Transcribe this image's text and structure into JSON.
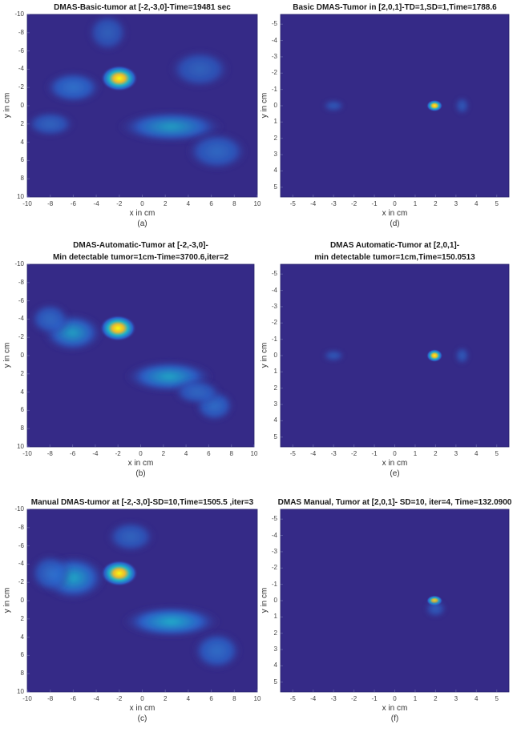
{
  "colors": {
    "background": "#352a87",
    "low": "#2b5fc8",
    "mid": "#1fb0c8",
    "high": "#f9fb0e"
  },
  "chart_data": [
    {
      "id": "a",
      "type": "heatmap",
      "title": [
        "DMAS-Basic-tumor at [-2,-3,0]-Time=19481 sec"
      ],
      "xlabel": "x in cm",
      "ylabel": "y in cm",
      "sublabel": "(a)",
      "xlim": [
        -10,
        10
      ],
      "ylim": [
        -10,
        10
      ],
      "xticks": [
        -10,
        -8,
        -6,
        -4,
        -2,
        0,
        2,
        4,
        6,
        8,
        10
      ],
      "yticks": [
        -10,
        -8,
        -6,
        -4,
        -2,
        0,
        2,
        4,
        6,
        8,
        10
      ],
      "y_reversed": true,
      "hotspots": [
        {
          "x": -2,
          "y": -3,
          "intensity": 1.0,
          "sx": 0.9,
          "sy": 0.8
        },
        {
          "x": -6,
          "y": -2,
          "intensity": 0.35,
          "sx": 1.4,
          "sy": 1.0
        },
        {
          "x": 2.5,
          "y": 2.3,
          "intensity": 0.4,
          "sx": 2.6,
          "sy": 1.0
        },
        {
          "x": 6.5,
          "y": 5,
          "intensity": 0.25,
          "sx": 1.5,
          "sy": 1.2
        },
        {
          "x": -8,
          "y": 2,
          "intensity": 0.2,
          "sx": 1.2,
          "sy": 0.8
        },
        {
          "x": 5,
          "y": -4,
          "intensity": 0.18,
          "sx": 1.5,
          "sy": 1.2
        },
        {
          "x": -3,
          "y": -8,
          "intensity": 0.15,
          "sx": 1,
          "sy": 1.2
        }
      ]
    },
    {
      "id": "d",
      "type": "heatmap",
      "title": [
        "Basic DMAS-Tumor in [2,0,1]-TD=1,SD=1,Time=1788.6"
      ],
      "xlabel": "x in cm",
      "ylabel": "y in cm",
      "sublabel": "(d)",
      "xlim": [
        -5.6,
        5.6
      ],
      "ylim": [
        -5.6,
        5.6
      ],
      "xticks": [
        -5,
        -4,
        -3,
        -2,
        -1,
        0,
        1,
        2,
        3,
        4,
        5
      ],
      "yticks": [
        -5,
        -4,
        -3,
        -2,
        -1,
        0,
        1,
        2,
        3,
        4,
        5
      ],
      "y_reversed": true,
      "hotspots": [
        {
          "x": 1.95,
          "y": 0,
          "intensity": 1.0,
          "sx": 0.22,
          "sy": 0.2
        },
        {
          "x": -3,
          "y": 0,
          "intensity": 0.12,
          "sx": 0.3,
          "sy": 0.2
        },
        {
          "x": 3.3,
          "y": 0,
          "intensity": 0.1,
          "sx": 0.2,
          "sy": 0.3
        }
      ]
    },
    {
      "id": "b",
      "type": "heatmap",
      "title": [
        "DMAS-Automatic-Tumor at [-2,-3,0]-",
        "Min detectable tumor=1cm-Time=3700.6,iter=2"
      ],
      "xlabel": "x in cm",
      "ylabel": "y in cm",
      "sublabel": "(b)",
      "xlim": [
        -10,
        10
      ],
      "ylim": [
        -10,
        10
      ],
      "xticks": [
        -10,
        -8,
        -6,
        -4,
        -2,
        0,
        2,
        4,
        6,
        8,
        10
      ],
      "yticks": [
        -10,
        -8,
        -6,
        -4,
        -2,
        0,
        2,
        4,
        6,
        8,
        10
      ],
      "y_reversed": true,
      "hotspots": [
        {
          "x": -2,
          "y": -3,
          "intensity": 1.0,
          "sx": 0.9,
          "sy": 0.8
        },
        {
          "x": -6,
          "y": -2.5,
          "intensity": 0.4,
          "sx": 1.5,
          "sy": 1.2
        },
        {
          "x": 2.5,
          "y": 2.3,
          "intensity": 0.45,
          "sx": 2.2,
          "sy": 1.0
        },
        {
          "x": 6.5,
          "y": 5.5,
          "intensity": 0.3,
          "sx": 1.0,
          "sy": 1.0
        },
        {
          "x": -8,
          "y": -4,
          "intensity": 0.25,
          "sx": 1,
          "sy": 1
        },
        {
          "x": 5,
          "y": 4,
          "intensity": 0.25,
          "sx": 1.2,
          "sy": 0.8
        }
      ]
    },
    {
      "id": "e",
      "type": "heatmap",
      "title": [
        "DMAS Automatic-Tumor at [2,0,1]-",
        "min detectable tumor=1cm,Time=150.0513"
      ],
      "xlabel": "x in cm",
      "ylabel": "y in cm",
      "sublabel": "(e)",
      "xlim": [
        -5.6,
        5.6
      ],
      "ylim": [
        -5.6,
        5.6
      ],
      "xticks": [
        -5,
        -4,
        -3,
        -2,
        -1,
        0,
        1,
        2,
        3,
        4,
        5
      ],
      "yticks": [
        -5,
        -4,
        -3,
        -2,
        -1,
        0,
        1,
        2,
        3,
        4,
        5
      ],
      "y_reversed": true,
      "hotspots": [
        {
          "x": 1.95,
          "y": 0,
          "intensity": 1.0,
          "sx": 0.22,
          "sy": 0.22
        },
        {
          "x": -3,
          "y": 0,
          "intensity": 0.12,
          "sx": 0.3,
          "sy": 0.2
        },
        {
          "x": 3.3,
          "y": 0,
          "intensity": 0.12,
          "sx": 0.2,
          "sy": 0.3
        }
      ]
    },
    {
      "id": "c",
      "type": "heatmap",
      "title": [
        "Manual DMAS-tumor at [-2,-3,0]-SD=10,Time=1505.5 ,iter=3"
      ],
      "xlabel": "x in cm",
      "ylabel": "y in cm",
      "sublabel": "(c)",
      "xlim": [
        -10,
        10
      ],
      "ylim": [
        -10,
        10
      ],
      "xticks": [
        -10,
        -8,
        -6,
        -4,
        -2,
        0,
        2,
        4,
        6,
        8,
        10
      ],
      "yticks": [
        -10,
        -8,
        -6,
        -4,
        -2,
        0,
        2,
        4,
        6,
        8,
        10
      ],
      "y_reversed": true,
      "hotspots": [
        {
          "x": -2,
          "y": -3,
          "intensity": 1.0,
          "sx": 0.9,
          "sy": 0.8
        },
        {
          "x": -6,
          "y": -2.5,
          "intensity": 0.45,
          "sx": 1.6,
          "sy": 1.4
        },
        {
          "x": 2.5,
          "y": 2.3,
          "intensity": 0.5,
          "sx": 2.4,
          "sy": 1.0
        },
        {
          "x": 6.5,
          "y": 5.5,
          "intensity": 0.3,
          "sx": 1.2,
          "sy": 1.2
        },
        {
          "x": -8,
          "y": -3,
          "intensity": 0.25,
          "sx": 1,
          "sy": 1.2
        },
        {
          "x": -1,
          "y": -7,
          "intensity": 0.2,
          "sx": 1.2,
          "sy": 1
        }
      ]
    },
    {
      "id": "f",
      "type": "heatmap",
      "title": [
        "DMAS Manual, Tumor at [2,0,1]- SD=10, iter=4, Time=132.0900"
      ],
      "xlabel": "x in cm",
      "ylabel": "y in cm",
      "sublabel": "(f)",
      "xlim": [
        -5.6,
        5.6
      ],
      "ylim": [
        -5.6,
        5.6
      ],
      "xticks": [
        -5,
        -4,
        -3,
        -2,
        -1,
        0,
        1,
        2,
        3,
        4,
        5
      ],
      "yticks": [
        -5,
        -4,
        -3,
        -2,
        -1,
        0,
        1,
        2,
        3,
        4,
        5
      ],
      "y_reversed": true,
      "hotspots": [
        {
          "x": 1.95,
          "y": 0,
          "intensity": 1.0,
          "sx": 0.22,
          "sy": 0.18
        },
        {
          "x": 2,
          "y": 0.5,
          "intensity": 0.12,
          "sx": 0.3,
          "sy": 0.3
        }
      ]
    }
  ]
}
